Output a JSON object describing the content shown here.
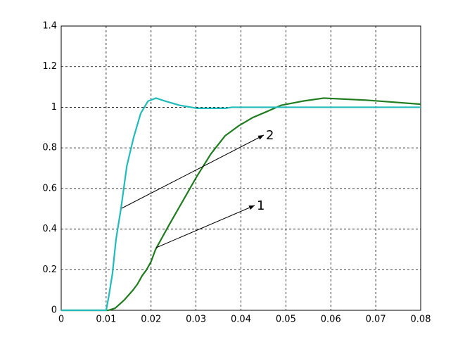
{
  "chart_data": {
    "type": "line",
    "xlim": [
      0,
      0.08
    ],
    "xticks": [
      0,
      0.01,
      0.02,
      0.03,
      0.04,
      0.05,
      0.06,
      0.07,
      0.08
    ],
    "ylim": [
      0,
      1.4
    ],
    "yticks": [
      0,
      0.2,
      0.4,
      0.6,
      0.8,
      1,
      1.2,
      1.4
    ],
    "grid": true,
    "series": [
      {
        "name": "1",
        "color": "#1f7d1f",
        "x": [
          0,
          0.0105,
          0.012,
          0.014,
          0.016,
          0.017,
          0.018,
          0.019,
          0.02,
          0.021,
          0.022,
          0.024,
          0.0271,
          0.0302,
          0.0333,
          0.0365,
          0.0396,
          0.0427,
          0.0459,
          0.049,
          0.0537,
          0.0584,
          0.0631,
          0.0678,
          0.074,
          0.08
        ],
        "values": [
          0,
          0,
          0.01,
          0.05,
          0.1,
          0.13,
          0.17,
          0.2,
          0.24,
          0.3,
          0.34,
          0.42,
          0.54,
          0.66,
          0.77,
          0.86,
          0.91,
          0.95,
          0.98,
          1.01,
          1.03,
          1.045,
          1.04,
          1.035,
          1.025,
          1.015
        ]
      },
      {
        "name": "2",
        "color": "#22bbbb",
        "x": [
          0,
          0.01,
          0.0106,
          0.0114,
          0.0122,
          0.0133,
          0.0146,
          0.0161,
          0.0177,
          0.0193,
          0.0211,
          0.0232,
          0.0263,
          0.0302,
          0.0365,
          0.038,
          0.05,
          0.06,
          0.07,
          0.08
        ],
        "values": [
          0,
          0,
          0.07,
          0.18,
          0.35,
          0.5,
          0.71,
          0.85,
          0.97,
          1.03,
          1.045,
          1.03,
          1.01,
          0.995,
          0.995,
          1,
          1,
          1,
          1,
          1
        ]
      }
    ]
  }
}
